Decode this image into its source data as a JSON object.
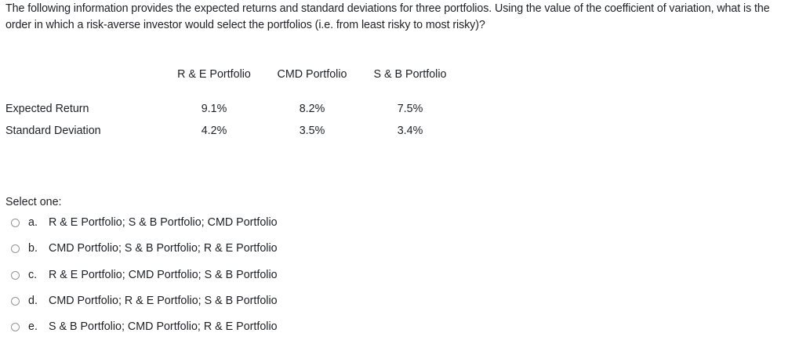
{
  "question": "The following information provides the expected returns and standard deviations for three portfolios. Using the value of the coefficient of variation, what is the order in which a risk-averse investor would select the portfolios (i.e. from least risky to most risky)?",
  "table": {
    "headers": [
      "R & E Portfolio",
      "CMD Portfolio",
      "S & B Portfolio"
    ],
    "rows": [
      {
        "label": "Expected Return",
        "values": [
          "9.1%",
          "8.2%",
          "7.5%"
        ]
      },
      {
        "label": "Standard Deviation",
        "values": [
          "4.2%",
          "3.5%",
          "3.4%"
        ]
      }
    ]
  },
  "select_one_label": "Select one:",
  "options": [
    {
      "letter": "a.",
      "text": "R & E Portfolio; S & B Portfolio; CMD Portfolio"
    },
    {
      "letter": "b.",
      "text": "CMD Portfolio; S & B Portfolio; R & E Portfolio"
    },
    {
      "letter": "c.",
      "text": "R & E Portfolio; CMD Portfolio; S & B Portfolio"
    },
    {
      "letter": "d.",
      "text": "CMD Portfolio; R & E Portfolio; S & B Portfolio"
    },
    {
      "letter": "e.",
      "text": "S & B Portfolio; CMD Portfolio; R & E Portfolio"
    }
  ]
}
